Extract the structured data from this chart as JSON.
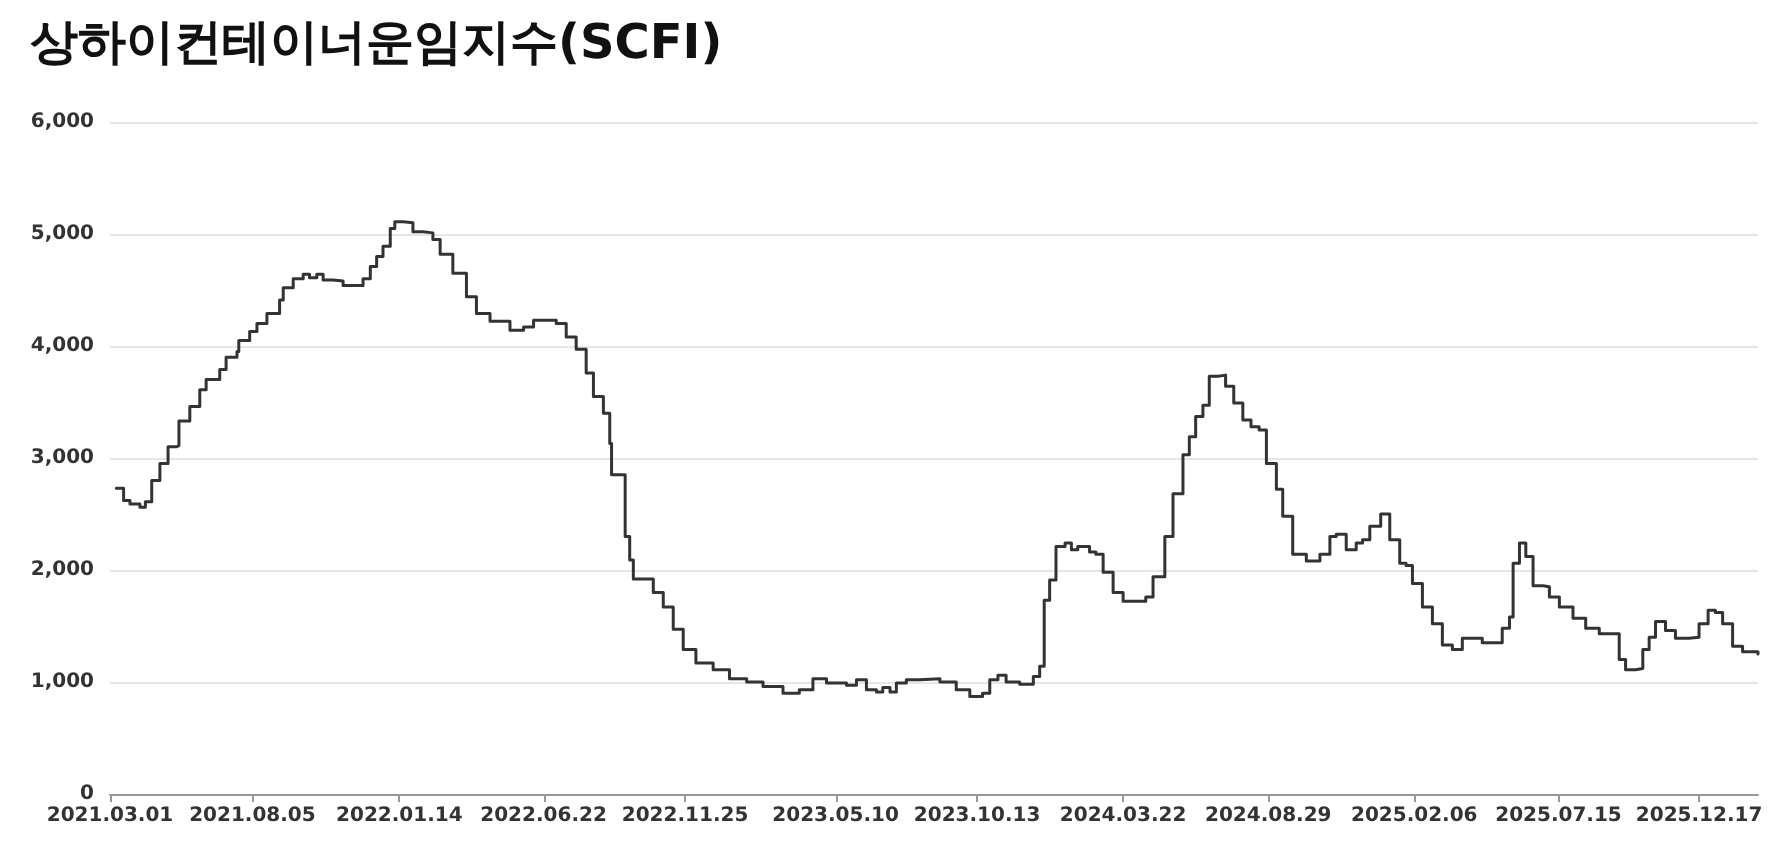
{
  "chart_data": {
    "type": "step",
    "title": "상하이컨테이너운임지수(SCFI)",
    "x": [
      "2021-03-08",
      "2021-03-16",
      "2021-03-23",
      "2021-04-03",
      "2021-04-09",
      "2021-04-16",
      "2021-04-25",
      "2021-05-04",
      "2021-05-13",
      "2021-05-16",
      "2021-05-28",
      "2021-06-08",
      "2021-06-15",
      "2021-06-30",
      "2021-07-07",
      "2021-07-19",
      "2021-07-21",
      "2021-08-02",
      "2021-08-10",
      "2021-08-21",
      "2021-09-04",
      "2021-09-08",
      "2021-09-19",
      "2021-09-30",
      "2021-10-07",
      "2021-10-15",
      "2021-10-22",
      "2021-11-02",
      "2021-11-13",
      "2021-11-28",
      "2021-12-05",
      "2021-12-13",
      "2021-12-20",
      "2021-12-27",
      "2022-01-04",
      "2022-01-09",
      "2022-01-18",
      "2022-01-29",
      "2022-02-09",
      "2022-02-20",
      "2022-02-28",
      "2022-03-14",
      "2022-03-29",
      "2022-04-09",
      "2022-04-24",
      "2022-05-16",
      "2022-05-31",
      "2022-06-11",
      "2022-07-06",
      "2022-07-17",
      "2022-07-28",
      "2022-08-08",
      "2022-08-16",
      "2022-08-27",
      "2022-09-03",
      "2022-09-05",
      "2022-09-18",
      "2022-09-20",
      "2022-09-25",
      "2022-09-29",
      "2022-10-13",
      "2022-10-21",
      "2022-11-01",
      "2022-11-12",
      "2022-11-23",
      "2022-12-07",
      "2022-12-26",
      "2023-01-13",
      "2023-02-01",
      "2023-02-19",
      "2023-03-13",
      "2023-03-31",
      "2023-04-15",
      "2023-04-30",
      "2023-05-22",
      "2023-06-02",
      "2023-06-13",
      "2023-06-24",
      "2023-07-01",
      "2023-07-09",
      "2023-07-16",
      "2023-07-27",
      "2023-08-11",
      "2023-09-02",
      "2023-09-20",
      "2023-10-05",
      "2023-10-19",
      "2023-10-27",
      "2023-11-05",
      "2023-11-14",
      "2023-11-29",
      "2023-12-14",
      "2023-12-21",
      "2023-12-26",
      "2024-01-01",
      "2024-01-08",
      "2024-01-18",
      "2024-01-25",
      "2024-02-01",
      "2024-02-14",
      "2024-02-21",
      "2024-02-29",
      "2024-03-11",
      "2024-03-22",
      "2024-04-16",
      "2024-04-24",
      "2024-05-05",
      "2024-05-07",
      "2024-05-16",
      "2024-05-27",
      "2024-06-03",
      "2024-06-10",
      "2024-06-18",
      "2024-06-25",
      "2024-07-05",
      "2024-07-13",
      "2024-07-22",
      "2024-08-01",
      "2024-08-10",
      "2024-08-19",
      "2024-08-27",
      "2024-09-07",
      "2024-09-14",
      "2024-09-25",
      "2024-10-10",
      "2024-10-25",
      "2024-11-05",
      "2024-11-12",
      "2024-11-23",
      "2024-12-04",
      "2024-12-11",
      "2024-12-19",
      "2024-12-31",
      "2025-01-10",
      "2025-01-21",
      "2025-01-28",
      "2025-02-04",
      "2025-02-15",
      "2025-02-26",
      "2025-03-09",
      "2025-03-20",
      "2025-03-31",
      "2025-04-11",
      "2025-04-22",
      "2025-05-07",
      "2025-05-14",
      "2025-05-22",
      "2025-05-26",
      "2025-06-02",
      "2025-06-09",
      "2025-06-17",
      "2025-06-28",
      "2025-07-05",
      "2025-07-16",
      "2025-07-31",
      "2025-08-14",
      "2025-08-29",
      "2025-09-13",
      "2025-09-20",
      "2025-09-27",
      "2025-10-08",
      "2025-10-16",
      "2025-10-23",
      "2025-10-30",
      "2025-11-10",
      "2025-11-21",
      "2025-12-06",
      "2025-12-17",
      "2025-12-27",
      "2026-01-04",
      "2026-01-12",
      "2026-01-23",
      "2026-02-03",
      "2026-02-20"
    ],
    "values": [
      2730,
      2620,
      2590,
      2560,
      2610,
      2800,
      2950,
      3100,
      3110,
      3330,
      3460,
      3610,
      3700,
      3790,
      3900,
      3950,
      4050,
      4130,
      4200,
      4290,
      4410,
      4520,
      4600,
      4640,
      4610,
      4640,
      4590,
      4580,
      4540,
      4540,
      4600,
      4710,
      4800,
      4890,
      5050,
      5110,
      5100,
      5020,
      5010,
      4950,
      4820,
      4650,
      4440,
      4290,
      4220,
      4140,
      4170,
      4230,
      4200,
      4080,
      3970,
      3760,
      3550,
      3400,
      3130,
      2850,
      2850,
      2300,
      2090,
      1920,
      1920,
      1800,
      1670,
      1470,
      1290,
      1170,
      1110,
      1030,
      1000,
      960,
      900,
      930,
      1030,
      990,
      970,
      1020,
      930,
      910,
      950,
      910,
      990,
      1020,
      1030,
      1000,
      930,
      870,
      900,
      1020,
      1060,
      1000,
      980,
      1050,
      1140,
      1730,
      1910,
      2210,
      2240,
      2180,
      2210,
      2160,
      2140,
      1980,
      1800,
      1720,
      1760,
      1940,
      1940,
      2300,
      2680,
      3030,
      3190,
      3370,
      3470,
      3730,
      3740,
      3640,
      3490,
      3340,
      3280,
      3250,
      2950,
      2720,
      2480,
      2140,
      2080,
      2140,
      2300,
      2320,
      2180,
      2240,
      2270,
      2390,
      2500,
      2270,
      2060,
      2040,
      1880,
      1670,
      1520,
      1330,
      1290,
      1390,
      1390,
      1350,
      1350,
      1480,
      1580,
      2060,
      2240,
      2120,
      1860,
      1850,
      1760,
      1670,
      1570,
      1480,
      1430,
      1430,
      1200,
      1110,
      1120,
      1290,
      1400,
      1540,
      1460,
      1390,
      1400,
      1520,
      1640,
      1620,
      1520,
      1320,
      1270,
      1250
    ],
    "color": "#333333",
    "xlim": [
      "2021-03-01",
      "2026-02-20"
    ],
    "xticks": [
      {
        "value": "2021-03-01",
        "label": "2021.03.01"
      },
      {
        "value": "2021-08-05",
        "label": "2021.08.05"
      },
      {
        "value": "2022-01-14",
        "label": "2022.01.14"
      },
      {
        "value": "2022-06-22",
        "label": "2022.06.22"
      },
      {
        "value": "2022-11-25",
        "label": "2022.11.25"
      },
      {
        "value": "2023-05-10",
        "label": "2023.05.10"
      },
      {
        "value": "2023-10-13",
        "label": "2023.10.13"
      },
      {
        "value": "2024-03-22",
        "label": "2024.03.22"
      },
      {
        "value": "2024-08-29",
        "label": "2024.08.29"
      },
      {
        "value": "2025-02-06",
        "label": "2025.02.06"
      },
      {
        "value": "2025-07-15",
        "label": "2025.07.15"
      },
      {
        "value": "2025-12-17",
        "label": "2025.12.17"
      }
    ],
    "ylim": [
      0,
      6000
    ],
    "yticks": [
      0,
      {
        "value": 1000,
        "label": "1,000"
      },
      {
        "value": 2000,
        "label": "2,000"
      },
      {
        "value": 3000,
        "label": "3,000"
      },
      {
        "value": 4000,
        "label": "4,000"
      },
      {
        "value": 5000,
        "label": "5,000"
      },
      {
        "value": 6000,
        "label": "6,000"
      }
    ],
    "grid": "y"
  }
}
